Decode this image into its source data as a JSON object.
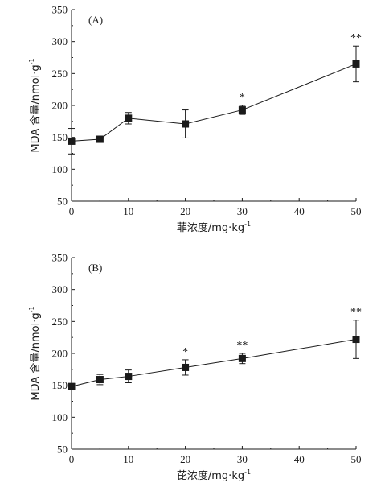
{
  "chart_data": [
    {
      "type": "line",
      "panel_label": "(A)",
      "xlabel": "菲浓度/mg·kg",
      "xlabel_sup": "-1",
      "ylabel": "MDA 含量/nmol·g",
      "ylabel_sup": "-1",
      "xlim": [
        0,
        50
      ],
      "ylim": [
        50,
        350
      ],
      "xticks": [
        0,
        10,
        20,
        30,
        40,
        50
      ],
      "yticks": [
        50,
        100,
        150,
        200,
        250,
        300,
        350
      ],
      "grid": false,
      "x": [
        0,
        5,
        10,
        20,
        30,
        50
      ],
      "y": [
        144,
        147,
        180,
        171,
        193,
        265
      ],
      "err": [
        20,
        5,
        9,
        22,
        7,
        28
      ],
      "significance": [
        "",
        "",
        "",
        "",
        "*",
        "**"
      ]
    },
    {
      "type": "line",
      "panel_label": "(B)",
      "xlabel": "芘浓度/mg·kg",
      "xlabel_sup": "-1",
      "ylabel": "MDA 含量/nmol·g",
      "ylabel_sup": "-1",
      "xlim": [
        0,
        50
      ],
      "ylim": [
        50,
        350
      ],
      "xticks": [
        0,
        10,
        20,
        30,
        40,
        50
      ],
      "yticks": [
        50,
        100,
        150,
        200,
        250,
        300,
        350
      ],
      "grid": false,
      "x": [
        0,
        5,
        10,
        20,
        30,
        50
      ],
      "y": [
        148,
        159,
        164,
        178,
        192,
        222
      ],
      "err": [
        5,
        8,
        10,
        12,
        8,
        30
      ],
      "significance": [
        "",
        "",
        "",
        "*",
        "**",
        "**"
      ]
    }
  ]
}
